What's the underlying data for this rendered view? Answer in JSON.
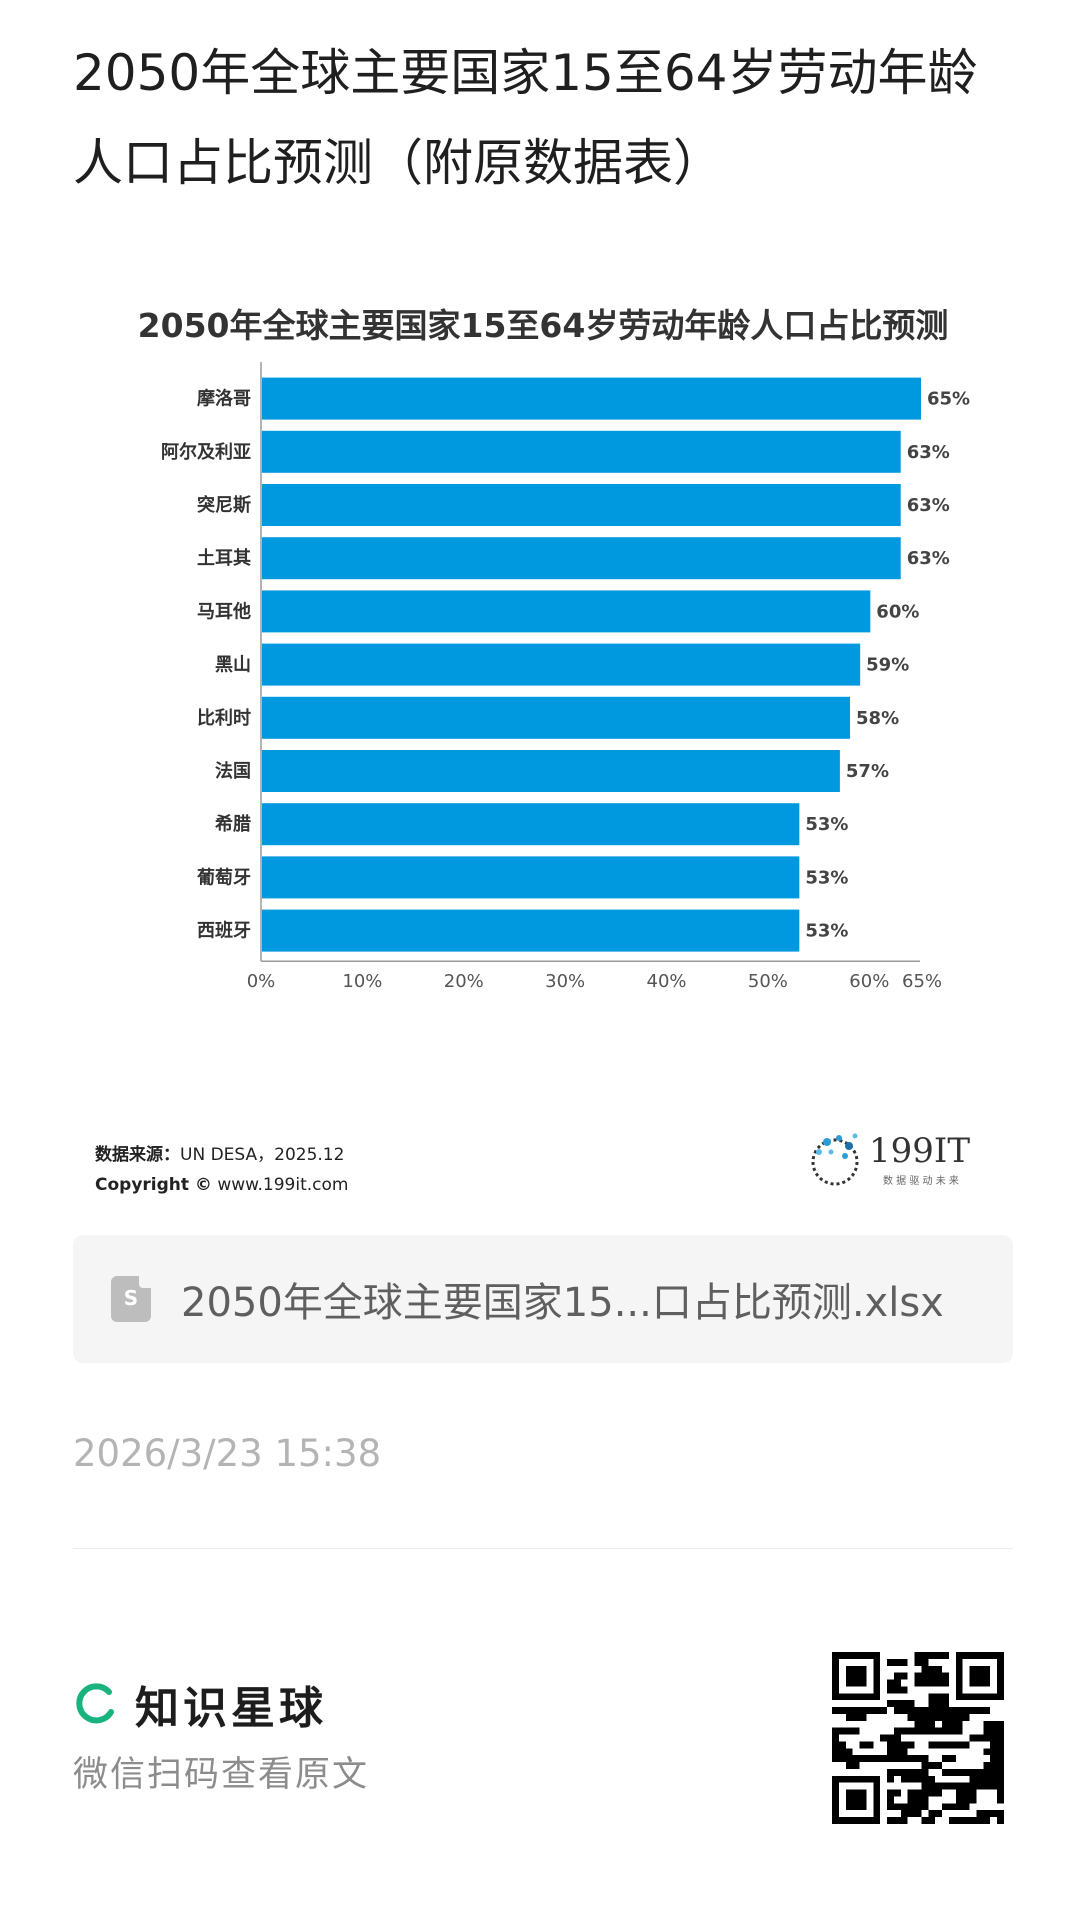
{
  "article": {
    "title": "2050年全球主要国家15至64岁劳动年龄人口占比预测（附原数据表）"
  },
  "chart_data": {
    "type": "bar",
    "orientation": "horizontal",
    "title": "2050年全球主要国家15至64岁劳动年龄人口占比预测",
    "categories": [
      "摩洛哥",
      "阿尔及利亚",
      "突尼斯",
      "土耳其",
      "马耳他",
      "黑山",
      "比利时",
      "法国",
      "希腊",
      "葡萄牙",
      "西班牙"
    ],
    "values": [
      65,
      63,
      63,
      63,
      60,
      59,
      58,
      57,
      53,
      53,
      53
    ],
    "data_labels": [
      "65%",
      "63%",
      "63%",
      "63%",
      "60%",
      "59%",
      "58%",
      "57%",
      "53%",
      "53%",
      "53%"
    ],
    "x_ticks": [
      0,
      10,
      20,
      30,
      40,
      50,
      60,
      65
    ],
    "x_tick_labels": [
      "0%",
      "10%",
      "20%",
      "30%",
      "40%",
      "50%",
      "60%",
      "65%"
    ],
    "xlim": [
      0,
      65
    ],
    "bar_color": "#0099e0",
    "grid": false,
    "legend": "none"
  },
  "source": {
    "label": "数据来源：",
    "text": "UN DESA，2025.12",
    "copyright_label": "Copyright ©",
    "copyright_site": "www.199it.com"
  },
  "brand": {
    "name": "199IT",
    "slogan": "数 据 驱 动 未 来"
  },
  "file": {
    "icon": "spreadsheet-file-icon",
    "icon_letter": "S",
    "name": "2050年全球主要国家15...口占比预测.xlsx"
  },
  "timestamp": "2026/3/23 15:38",
  "footer": {
    "app_name": "知识星球",
    "hint": "微信扫码查看原文",
    "logo_color": "#19b37d"
  }
}
